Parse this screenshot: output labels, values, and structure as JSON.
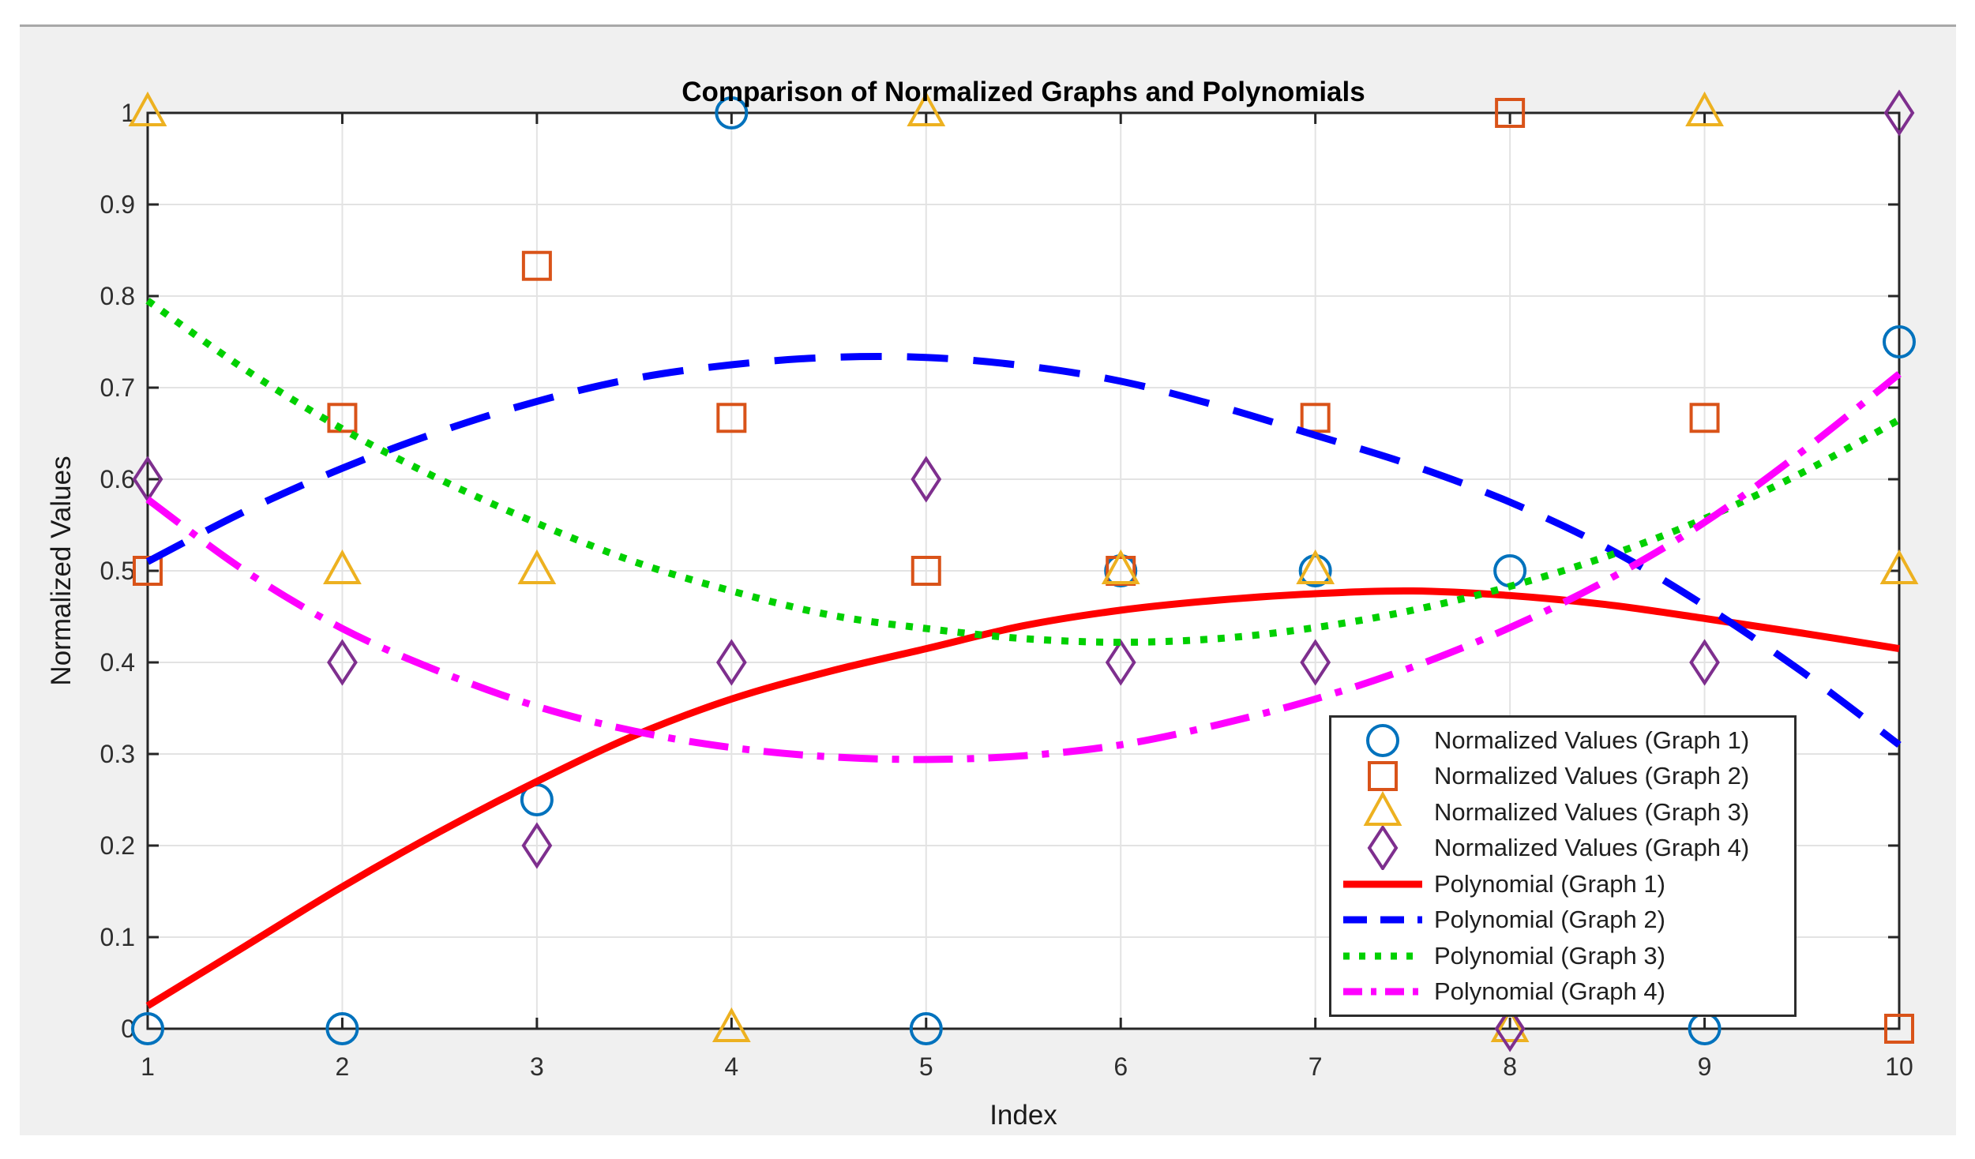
{
  "window": {
    "page_background": "#ffffff",
    "figure_background": "#f0f0f0",
    "top_border_color": "#a8a8a8",
    "plot_background": "#ffffff",
    "grid_color": "#e3e3e3",
    "axis_color": "#262626",
    "tick_label_color": "#2e2e2e"
  },
  "chart_data": {
    "type": "scatter+line",
    "title": "Comparison of Normalized Graphs and Polynomials",
    "xlabel": "Index",
    "ylabel": "Normalized Values",
    "xlim": [
      1,
      10
    ],
    "ylim": [
      0,
      1
    ],
    "grid": true,
    "legend_position": "inside-bottom-right",
    "x_ticks": [
      1,
      2,
      3,
      4,
      5,
      6,
      7,
      8,
      9,
      10
    ],
    "x_tick_labels": [
      "1",
      "2",
      "3",
      "4",
      "5",
      "6",
      "7",
      "8",
      "9",
      "10"
    ],
    "y_ticks": [
      0,
      0.1,
      0.2,
      0.3,
      0.4,
      0.5,
      0.6,
      0.7,
      0.8,
      0.9,
      1
    ],
    "y_tick_labels": [
      "0",
      "0.1",
      "0.2",
      "0.3",
      "0.4",
      "0.5",
      "0.6",
      "0.7",
      "0.8",
      "0.9",
      "1"
    ],
    "x": [
      1,
      2,
      3,
      4,
      5,
      6,
      7,
      8,
      9,
      10
    ],
    "scatter_series": [
      {
        "name": "Normalized Values (Graph 1)",
        "marker": "circle",
        "color": "#0072BD",
        "values": [
          0,
          0,
          0.25,
          1,
          0,
          0.5,
          0.5,
          0.5,
          0,
          0.75
        ]
      },
      {
        "name": "Normalized Values (Graph 2)",
        "marker": "square",
        "color": "#D95319",
        "values": [
          0.5,
          0.667,
          0.833,
          0.667,
          0.5,
          0.5,
          0.667,
          1,
          0.667,
          0
        ]
      },
      {
        "name": "Normalized Values (Graph 3)",
        "marker": "triangle",
        "color": "#EDB120",
        "values": [
          1,
          0.5,
          0.5,
          0,
          1,
          0.5,
          0.5,
          0,
          1,
          0.5
        ]
      },
      {
        "name": "Normalized Values (Graph 4)",
        "marker": "diamond",
        "color": "#7E2F8E",
        "values": [
          0.6,
          0.4,
          0.2,
          0.4,
          0.6,
          0.4,
          0.4,
          0,
          0.4,
          1
        ]
      }
    ],
    "x_dense": [
      1,
      1.5,
      2,
      2.5,
      3,
      3.5,
      4,
      4.5,
      5,
      5.5,
      6,
      6.5,
      7,
      7.5,
      8,
      8.5,
      9,
      9.5,
      10
    ],
    "line_series": [
      {
        "name": "Polynomial (Graph 1)",
        "style": "solid",
        "color": "#FF0000",
        "values": [
          0.025,
          0.09,
          0.155,
          0.215,
          0.27,
          0.32,
          0.36,
          0.39,
          0.415,
          0.44,
          0.457,
          0.468,
          0.475,
          0.478,
          0.473,
          0.463,
          0.448,
          0.432,
          0.415
        ]
      },
      {
        "name": "Polynomial (Graph 2)",
        "style": "dashed",
        "color": "#0000FF",
        "values": [
          0.51,
          0.565,
          0.612,
          0.652,
          0.685,
          0.71,
          0.725,
          0.733,
          0.733,
          0.724,
          0.707,
          0.68,
          0.648,
          0.615,
          0.575,
          0.525,
          0.462,
          0.39,
          0.31
        ]
      },
      {
        "name": "Polynomial (Graph 3)",
        "style": "dotted",
        "color": "#00D000",
        "values": [
          0.795,
          0.72,
          0.655,
          0.6,
          0.552,
          0.51,
          0.478,
          0.452,
          0.437,
          0.426,
          0.422,
          0.426,
          0.438,
          0.457,
          0.483,
          0.516,
          0.557,
          0.607,
          0.665
        ]
      },
      {
        "name": "Polynomial (Graph 4)",
        "style": "dashdot",
        "color": "#FF00FF",
        "values": [
          0.578,
          0.5,
          0.437,
          0.39,
          0.352,
          0.325,
          0.307,
          0.297,
          0.294,
          0.298,
          0.31,
          0.332,
          0.36,
          0.395,
          0.438,
          0.49,
          0.553,
          0.63,
          0.715
        ]
      }
    ]
  },
  "legend": {
    "items": [
      {
        "label": "Normalized Values (Graph 1)",
        "icon": "circle-marker",
        "color": "#0072BD"
      },
      {
        "label": "Normalized Values (Graph 2)",
        "icon": "square-marker",
        "color": "#D95319"
      },
      {
        "label": "Normalized Values (Graph 3)",
        "icon": "triangle-marker",
        "color": "#EDB120"
      },
      {
        "label": "Normalized Values (Graph 4)",
        "icon": "diamond-marker",
        "color": "#7E2F8E"
      },
      {
        "label": "Polynomial (Graph 1)",
        "icon": "line-solid",
        "color": "#FF0000"
      },
      {
        "label": "Polynomial (Graph 2)",
        "icon": "line-dashed",
        "color": "#0000FF"
      },
      {
        "label": "Polynomial (Graph 3)",
        "icon": "line-dotted",
        "color": "#00D000"
      },
      {
        "label": "Polynomial (Graph 4)",
        "icon": "line-dashdot",
        "color": "#FF00FF"
      }
    ]
  }
}
